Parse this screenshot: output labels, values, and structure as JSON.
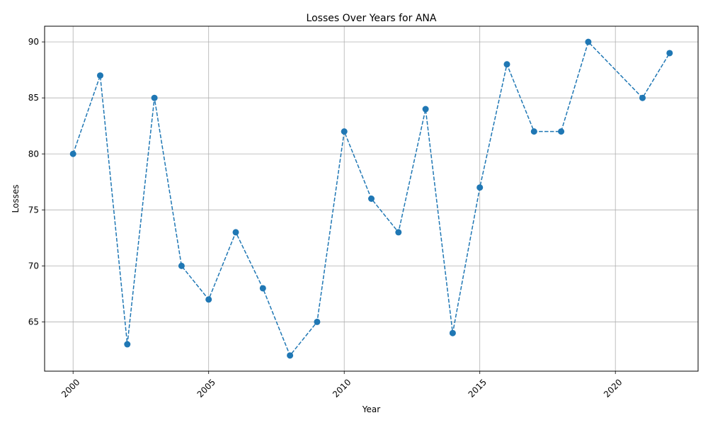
{
  "chart_data": {
    "type": "line",
    "title": "Losses Over Years for ANA",
    "xlabel": "Year",
    "ylabel": "Losses",
    "x": [
      2000,
      2001,
      2002,
      2003,
      2004,
      2005,
      2006,
      2007,
      2008,
      2009,
      2010,
      2011,
      2012,
      2013,
      2014,
      2015,
      2016,
      2017,
      2018,
      2019,
      2021,
      2022
    ],
    "series": [
      {
        "values": [
          80,
          87,
          63,
          85,
          70,
          67,
          73,
          68,
          62,
          65,
          82,
          76,
          73,
          84,
          64,
          77,
          88,
          82,
          82,
          90,
          85,
          89
        ],
        "color": "#1f77b4",
        "line_style": "dashed",
        "marker": "circle"
      }
    ],
    "xlim": [
      1998.95,
      2023.05
    ],
    "ylim": [
      60.6,
      91.4
    ],
    "xticks": [
      "2000",
      "2005",
      "2010",
      "2015",
      "2020"
    ],
    "yticks": [
      "65",
      "70",
      "75",
      "80",
      "85",
      "90"
    ],
    "x_tick_rotation": 45,
    "grid": true
  }
}
